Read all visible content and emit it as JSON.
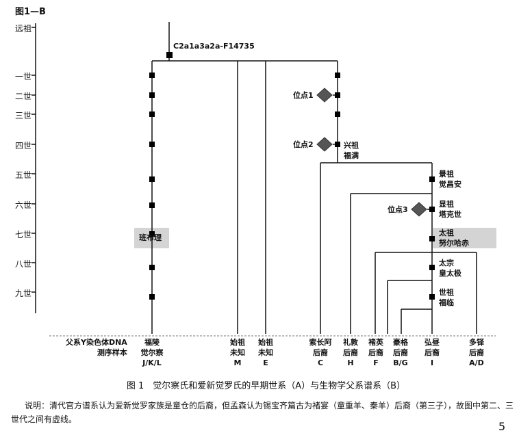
{
  "figure_id": "图1—B",
  "generations": [
    "远祖",
    "一世",
    "二世",
    "三世",
    "四世",
    "五世",
    "六世",
    "七世",
    "八世",
    "九世"
  ],
  "root_haplogroup": "C2a1a3a2a-F14735",
  "sites": [
    "位点1",
    "位点2",
    "位点3"
  ],
  "ancestors": {
    "xingzu": [
      "兴祖",
      "福满"
    ],
    "jingzu": [
      "景祖",
      "觉昌安"
    ],
    "xianzu": [
      "显祖",
      "塔克世"
    ],
    "taizu": [
      "太祖",
      "努尔哈赤"
    ],
    "taizong": [
      "太宗",
      "皇太极"
    ],
    "shizu": [
      "世祖",
      "福临"
    ]
  },
  "banbuli": "班布理",
  "sample_label": [
    "父系Y染色体DNA",
    "测序样本"
  ],
  "columns": [
    {
      "name": [
        "福陵",
        "觉尔察"
      ],
      "code": "J/K/L"
    },
    {
      "name": [
        "始祖",
        "未知"
      ],
      "code": "M"
    },
    {
      "name": [
        "始祖",
        "未知"
      ],
      "code": "E"
    },
    {
      "name": [
        "索长阿",
        "后裔"
      ],
      "code": "C"
    },
    {
      "name": [
        "礼敦",
        "后裔"
      ],
      "code": "H"
    },
    {
      "name": [
        "褚英",
        "后裔"
      ],
      "code": "F"
    },
    {
      "name": [
        "豪格",
        "后裔"
      ],
      "code": "B/G"
    },
    {
      "name": [
        "弘昼",
        "后裔"
      ],
      "code": "I"
    },
    {
      "name": [
        "多铎",
        "后裔"
      ],
      "code": "A/D"
    }
  ],
  "caption": "图 1　觉尔察氏和爱新觉罗氏的早期世系（A）与生物学父系谱系（B）",
  "note": "说明：清代官方谱系认为爱新觉罗家族是童仓的后裔，但孟森认为锡宝齐篇古为褚宴（童重羊、秦羊）后裔（第三子），故图中第二、三世代之间有虚线。",
  "page_number": "5"
}
